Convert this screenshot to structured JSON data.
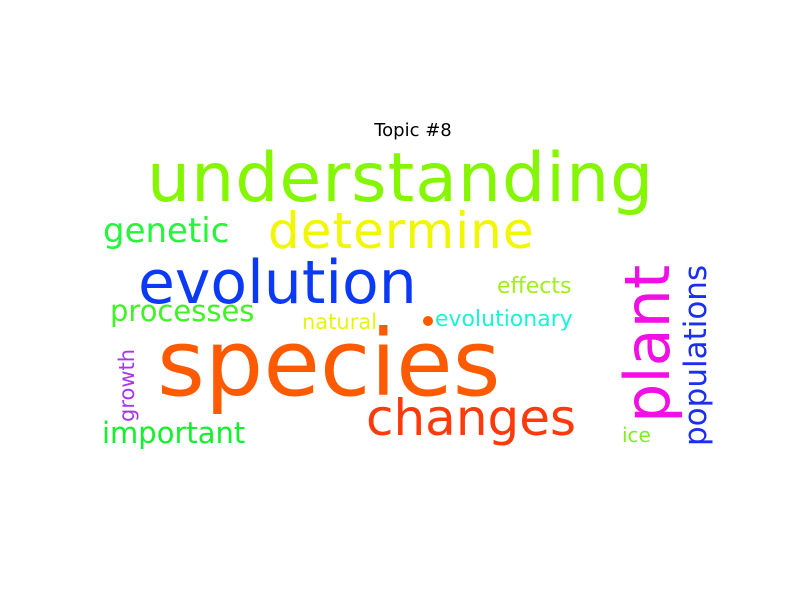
{
  "title": "Topic #8",
  "words": {
    "understanding": {
      "text": "understanding",
      "color": "#84f700"
    },
    "determine": {
      "text": "determine",
      "color": "#f0f700"
    },
    "evolution": {
      "text": "evolution",
      "color": "#0a3af5"
    },
    "species": {
      "text": "species",
      "color": "#ff5a00"
    },
    "changes": {
      "text": "changes",
      "color": "#ff3a0a"
    },
    "genetic": {
      "text": "genetic",
      "color": "#27f43d"
    },
    "processes": {
      "text": "processes",
      "color": "#40f324"
    },
    "important": {
      "text": "important",
      "color": "#15f02d"
    },
    "natural": {
      "text": "natural",
      "color": "#e4f514"
    },
    "effects": {
      "text": "effects",
      "color": "#a0f016"
    },
    "evolutionary": {
      "text": "evolutionary",
      "color": "#18f5d6"
    },
    "ice": {
      "text": "ice",
      "color": "#7ff01b"
    },
    "plant": {
      "text": "plant",
      "color": "#f20fe6"
    },
    "populations": {
      "text": "populations",
      "color": "#1b2ff0"
    },
    "growth": {
      "text": "growth",
      "color": "#a636f0"
    }
  },
  "dot_color": "#ff5a00"
}
